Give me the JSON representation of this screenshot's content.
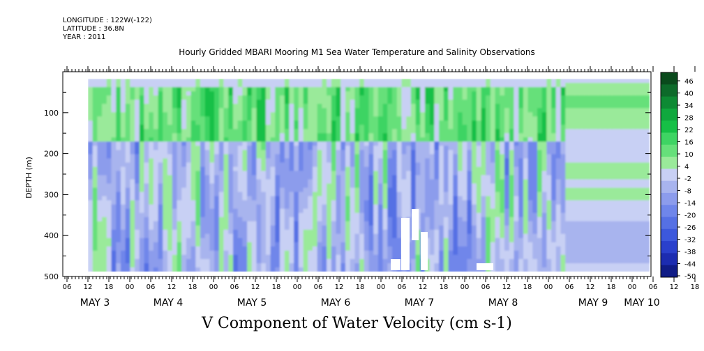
{
  "header": {
    "longitude": "LONGITUDE : 122W(-122)",
    "latitude": "LATITUDE : 36.8N",
    "year": "YEAR : 2011",
    "title": "Hourly Gridded MBARI Mooring M1 Sea Water Temperature and Salinity Observations"
  },
  "chart_data": {
    "type": "heatmap",
    "title": "V Component of Water Velocity (cm s-1)",
    "ylabel": "DEPTH (m)",
    "xlabel": "",
    "ylim": [
      500,
      0
    ],
    "y_ticks": [
      100,
      200,
      300,
      400,
      500
    ],
    "x_hour_ticks": [
      "06",
      "12",
      "18",
      "00",
      "06",
      "12",
      "18",
      "00",
      "06",
      "12",
      "18",
      "00",
      "06",
      "12",
      "18",
      "00",
      "06",
      "12",
      "18",
      "00",
      "06",
      "12",
      "18",
      "00",
      "06",
      "12",
      "18",
      "00",
      "06",
      "12",
      "18",
      "00",
      "06"
    ],
    "x_day_labels": [
      "MAY  3",
      "MAY  4",
      "MAY  5",
      "MAY  6",
      "MAY  7",
      "MAY  8",
      "MAY  9",
      "MAY 10"
    ],
    "colorbar": {
      "labels": [
        "46",
        "40",
        "34",
        "28",
        "22",
        "16",
        "10",
        "4",
        "-2",
        "-8",
        "-14",
        "-20",
        "-26",
        "-32",
        "-38",
        "-44",
        "-50"
      ],
      "colors": [
        "#0a4a1c",
        "#0d6a2a",
        "#0e8a34",
        "#10a83e",
        "#16c046",
        "#3ed463",
        "#66e07a",
        "#9aea9a",
        "#c8d0f4",
        "#a8b4ee",
        "#8c9cec",
        "#6f86ea",
        "#5570e4",
        "#3c58dc",
        "#2a40cc",
        "#1c2cb0",
        "#101c86"
      ]
    },
    "description_ranges": {
      "upper_layer_0_150m": "mostly positive (green, ~4 to 22)",
      "lower_layer_200_480m": "mostly negative (blue, ~-2 to -20)"
    }
  }
}
